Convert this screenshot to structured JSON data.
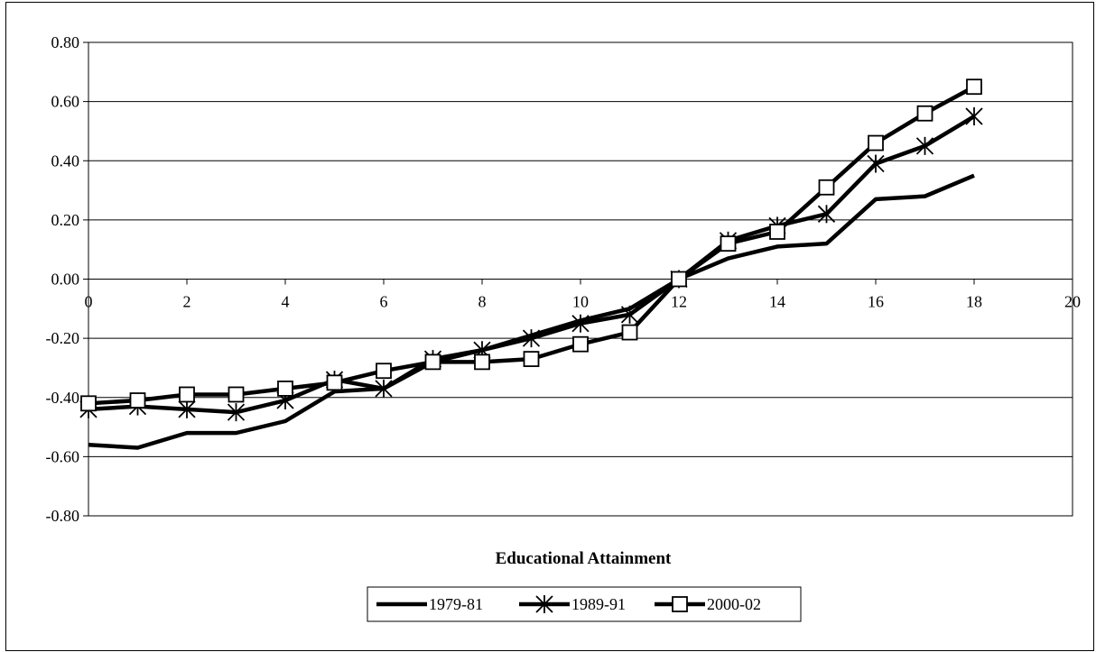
{
  "chart_data": {
    "type": "line",
    "title": "",
    "xlabel": "Educational Attainment",
    "ylabel": "",
    "xlim": [
      0,
      20
    ],
    "ylim": [
      -0.8,
      0.8
    ],
    "x_ticks": [
      0,
      2,
      4,
      6,
      8,
      10,
      12,
      14,
      16,
      18,
      20
    ],
    "y_ticks": [
      0.8,
      0.6,
      0.4,
      0.2,
      0.0,
      -0.2,
      -0.4,
      -0.6,
      -0.8
    ],
    "y_tick_labels": [
      "0.80",
      "0.60",
      "0.40",
      "0.20",
      "0.00",
      "-0.20",
      "-0.40",
      "-0.60",
      "-0.80"
    ],
    "grid": "horizontal",
    "legend_position": "bottom",
    "x": [
      0,
      1,
      2,
      3,
      4,
      5,
      6,
      7,
      8,
      9,
      10,
      11,
      12,
      13,
      14,
      15,
      16,
      17,
      18
    ],
    "series": [
      {
        "name": "1979-81",
        "marker": "none",
        "values": [
          -0.56,
          -0.57,
          -0.52,
          -0.52,
          -0.48,
          -0.38,
          -0.37,
          -0.28,
          -0.24,
          -0.19,
          -0.14,
          -0.1,
          0.0,
          0.07,
          0.11,
          0.12,
          0.27,
          0.28,
          0.35
        ]
      },
      {
        "name": "1989-91",
        "marker": "asterisk",
        "values": [
          -0.44,
          -0.43,
          -0.44,
          -0.45,
          -0.41,
          -0.34,
          -0.37,
          -0.27,
          -0.24,
          -0.2,
          -0.15,
          -0.12,
          0.0,
          0.13,
          0.18,
          0.22,
          0.39,
          0.45,
          0.55
        ]
      },
      {
        "name": "2000-02",
        "marker": "square",
        "values": [
          -0.42,
          -0.41,
          -0.39,
          -0.39,
          -0.37,
          -0.35,
          -0.31,
          -0.28,
          -0.28,
          -0.27,
          -0.22,
          -0.18,
          0.0,
          0.12,
          0.16,
          0.31,
          0.46,
          0.56,
          0.65
        ]
      }
    ]
  },
  "colors": {
    "line": "#000000",
    "grid": "#000000",
    "background": "#ffffff"
  }
}
